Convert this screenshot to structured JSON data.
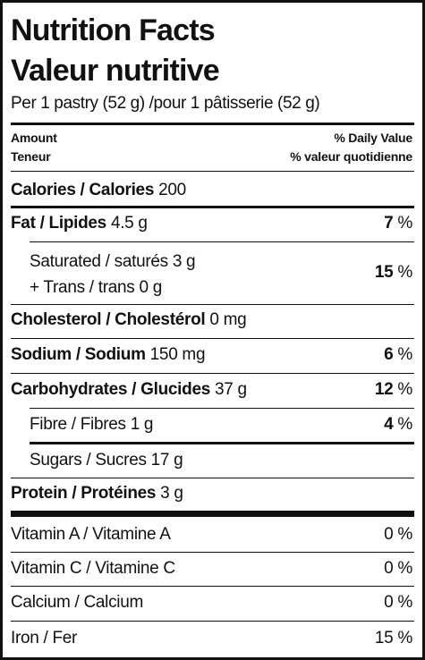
{
  "title_en": "Nutrition Facts",
  "title_fr": "Valeur nutritive",
  "serving": "Per 1 pastry (52 g) /pour 1 pâtisserie (52 g)",
  "header": {
    "amount_en": "Amount",
    "amount_fr": "Teneur",
    "dv_en": "% Daily Value",
    "dv_fr": "% valeur quotidienne"
  },
  "calories": {
    "label": "Calories / Calories",
    "value": "200"
  },
  "fat": {
    "label": "Fat / Lipides",
    "value": "4.5 g",
    "dv_num": "7",
    "dv_sign": " %"
  },
  "saturated": {
    "text": "Saturated / saturés 3 g"
  },
  "trans": {
    "text": "+ Trans / trans 0 g"
  },
  "sat_trans_dv": {
    "num": "15",
    "sign": " %"
  },
  "cholesterol": {
    "label": "Cholesterol / Cholestérol",
    "value": "0 mg"
  },
  "sodium": {
    "label": "Sodium / Sodium",
    "value": "150 mg",
    "dv_num": "6",
    "dv_sign": " %"
  },
  "carbohydrates": {
    "label": "Carbohydrates / Glucides",
    "value": "37 g",
    "dv_num": "12",
    "dv_sign": " %"
  },
  "fibre": {
    "text": "Fibre / Fibres 1 g",
    "dv_num": "4",
    "dv_sign": " %"
  },
  "sugars": {
    "text": "Sugars / Sucres 17 g"
  },
  "protein": {
    "label": "Protein / Protéines",
    "value": "3 g"
  },
  "vitamins": [
    {
      "label": "Vitamin A / Vitamine A",
      "dv": "0 %"
    },
    {
      "label": "Vitamin C / Vitamine C",
      "dv": "0 %"
    },
    {
      "label": "Calcium / Calcium",
      "dv": "0 %"
    },
    {
      "label": "Iron / Fer",
      "dv": "15 %"
    }
  ]
}
